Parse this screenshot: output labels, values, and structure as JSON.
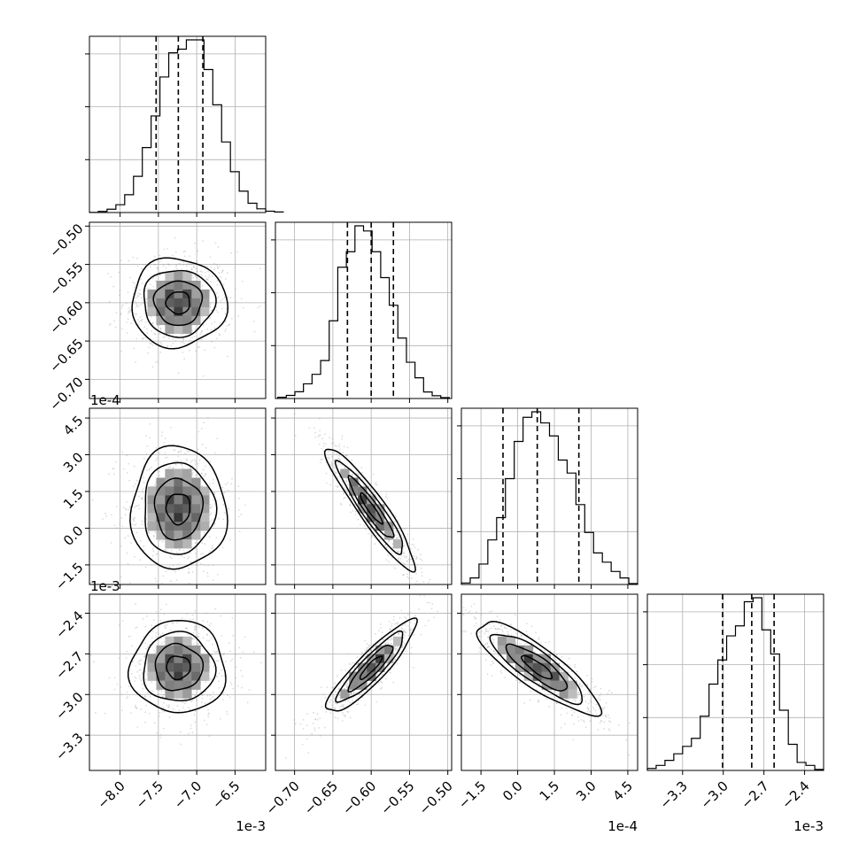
{
  "chart_data": {
    "type": "corner",
    "parameters": [
      {
        "multiplier_label": "1e-3",
        "range": [
          -8.4,
          -6.1
        ],
        "ticks": [
          -8.0,
          -7.5,
          -7.0,
          -6.5
        ],
        "tick_labels": [
          "−8.0",
          "−7.5",
          "−7.0",
          "−6.5"
        ],
        "quantiles": [
          -7.53,
          -7.24,
          -6.92
        ],
        "hist_edges_start": -8.4,
        "hist_bin_width": 0.115,
        "hist_counts": [
          0.1,
          0.6,
          1.8,
          4.2,
          9.6,
          19.5,
          35,
          52,
          73,
          86,
          88,
          93,
          93,
          77,
          58,
          38,
          22,
          11.5,
          5,
          2,
          0.7,
          0.3
        ],
        "center": -7.24,
        "sigma": 0.31
      },
      {
        "multiplier_label": "",
        "range": [
          -0.725,
          -0.495
        ],
        "ticks": [
          -0.7,
          -0.65,
          -0.6,
          -0.55,
          -0.5
        ],
        "tick_labels": [
          "−0.70",
          "−0.65",
          "−0.60",
          "−0.55",
          "−0.50"
        ],
        "quantiles": [
          -0.631,
          -0.6,
          -0.571
        ],
        "hist_edges_start": -0.722,
        "hist_bin_width": 0.0112,
        "hist_counts": [
          0.7,
          1.8,
          3.9,
          8.5,
          14,
          22,
          45,
          76,
          85,
          100,
          97,
          85,
          70,
          54,
          35,
          21,
          12,
          3.8,
          1.6,
          0.5
        ],
        "center": -0.6,
        "sigma": 0.029
      },
      {
        "multiplier_label": "1e-4",
        "range": [
          -2.3,
          4.9
        ],
        "ticks": [
          -1.5,
          0.0,
          1.5,
          3.0,
          4.5
        ],
        "tick_labels": [
          "−1.5",
          "0.0",
          "1.5",
          "3.0",
          "4.5"
        ],
        "quantiles": [
          -0.6,
          0.8,
          2.5
        ],
        "hist_edges_start": -2.3,
        "hist_bin_width": 0.36,
        "hist_counts": [
          0.8,
          3.5,
          11,
          24,
          36,
          57,
          77,
          90,
          93,
          87,
          80,
          67,
          60,
          43,
          28,
          17,
          12,
          7,
          3.5,
          0.5
        ],
        "center": 0.8,
        "sigma": 1.25
      },
      {
        "multiplier_label": "1e-3",
        "range": [
          -3.56,
          -2.26
        ],
        "ticks": [
          -3.3,
          -3.0,
          -2.7,
          -2.4
        ],
        "tick_labels": [
          "−3.3",
          "−3.0",
          "−2.7",
          "−2.4"
        ],
        "quantiles": [
          -3.005,
          -2.79,
          -2.625
        ],
        "hist_edges_start": -3.56,
        "hist_bin_width": 0.065,
        "hist_counts": [
          1,
          2.5,
          5,
          8.3,
          12,
          16,
          27,
          43,
          55,
          67,
          72,
          84,
          86,
          70,
          58,
          30,
          13,
          4,
          2.5,
          0.5
        ],
        "center": -2.8,
        "sigma": 0.17
      }
    ],
    "correlations": [
      [
        1,
        0,
        0,
        0
      ],
      [
        0,
        1,
        -0.93,
        0.9
      ],
      [
        0,
        -0.93,
        1,
        -0.85
      ],
      [
        0,
        0.9,
        -0.85,
        1
      ]
    ],
    "contour_levels_sigma": [
      0.5,
      1.0,
      1.5,
      2.0
    ],
    "grid": true
  }
}
